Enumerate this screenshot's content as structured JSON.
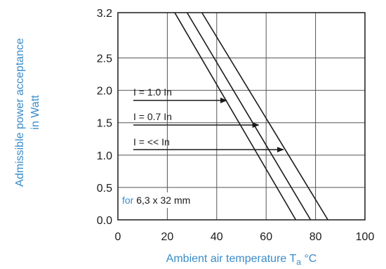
{
  "chart_data": {
    "type": "line",
    "title": "",
    "xlabel": {
      "main": "Ambient air temperature T",
      "sub": "a",
      "unit": " °C"
    },
    "ylabel": [
      "Admissible power acceptance",
      "in Watt"
    ],
    "xlim": [
      0,
      100
    ],
    "ylim": [
      0,
      3.2
    ],
    "x_ticks": [
      "0",
      "20",
      "40",
      "60",
      "80",
      "100"
    ],
    "y_ticks": [
      "0.0",
      "0.5",
      "1.0",
      "1.5",
      "2.0",
      "2.5",
      "3.2"
    ],
    "grid": true,
    "series": [
      {
        "name": "I = 1.0 In",
        "x": [
          23,
          72
        ],
        "y": [
          3.2,
          0.0
        ],
        "arrow_at": {
          "x": 44,
          "y": 1.9
        }
      },
      {
        "name": "I = 0.7 In",
        "x": [
          28,
          78
        ],
        "y": [
          3.2,
          0.0
        ],
        "arrow_at": {
          "x": 57,
          "y": 1.5
        }
      },
      {
        "name": "I = << In",
        "x": [
          34,
          85
        ],
        "y": [
          3.2,
          0.0
        ],
        "arrow_at": {
          "x": 67,
          "y": 1.05
        }
      }
    ],
    "annotation": {
      "prefix": "for ",
      "text": "6,3 x 32 mm"
    }
  },
  "colors": {
    "axis_title": "#3a8cc9",
    "ink": "#1a1a1a",
    "grid": "#555555"
  }
}
